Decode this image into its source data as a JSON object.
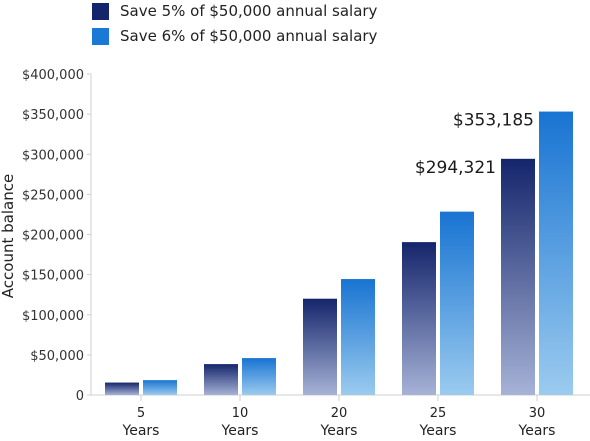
{
  "chart_data": {
    "type": "bar",
    "ylabel": "Account balance",
    "ylim": [
      0,
      400000
    ],
    "yticks": [
      0,
      50000,
      100000,
      150000,
      200000,
      250000,
      300000,
      350000,
      400000
    ],
    "ytick_labels": [
      "0",
      "$50,000",
      "$100,000",
      "$150,000",
      "$200,000",
      "$250,000",
      "$300,000",
      "$350,000",
      "$400,000"
    ],
    "categories": [
      "5 Years",
      "10 Years",
      "20 Years",
      "25 Years",
      "30 Years"
    ],
    "category_lines": [
      [
        "5",
        "Years"
      ],
      [
        "10",
        "Years"
      ],
      [
        "20",
        "Years"
      ],
      [
        "25",
        "Years"
      ],
      [
        "30",
        "Years"
      ]
    ],
    "series": [
      {
        "name": "Save 5% of $50,000 annual salary",
        "values": [
          15500,
          38500,
          120000,
          190500,
          294321
        ],
        "color_top": "#14256b",
        "color_bottom": "#a6b2d6"
      },
      {
        "name": "Save 6% of $50,000 annual salary",
        "values": [
          18500,
          46000,
          144500,
          228500,
          353185
        ],
        "color_top": "#1874d2",
        "color_bottom": "#9bcbef"
      }
    ],
    "annotations": [
      {
        "series": 0,
        "category": 4,
        "text": "$294,321"
      },
      {
        "series": 1,
        "category": 4,
        "text": "$353,185"
      }
    ],
    "legend": {
      "placement": "top-left"
    },
    "grid": false
  }
}
